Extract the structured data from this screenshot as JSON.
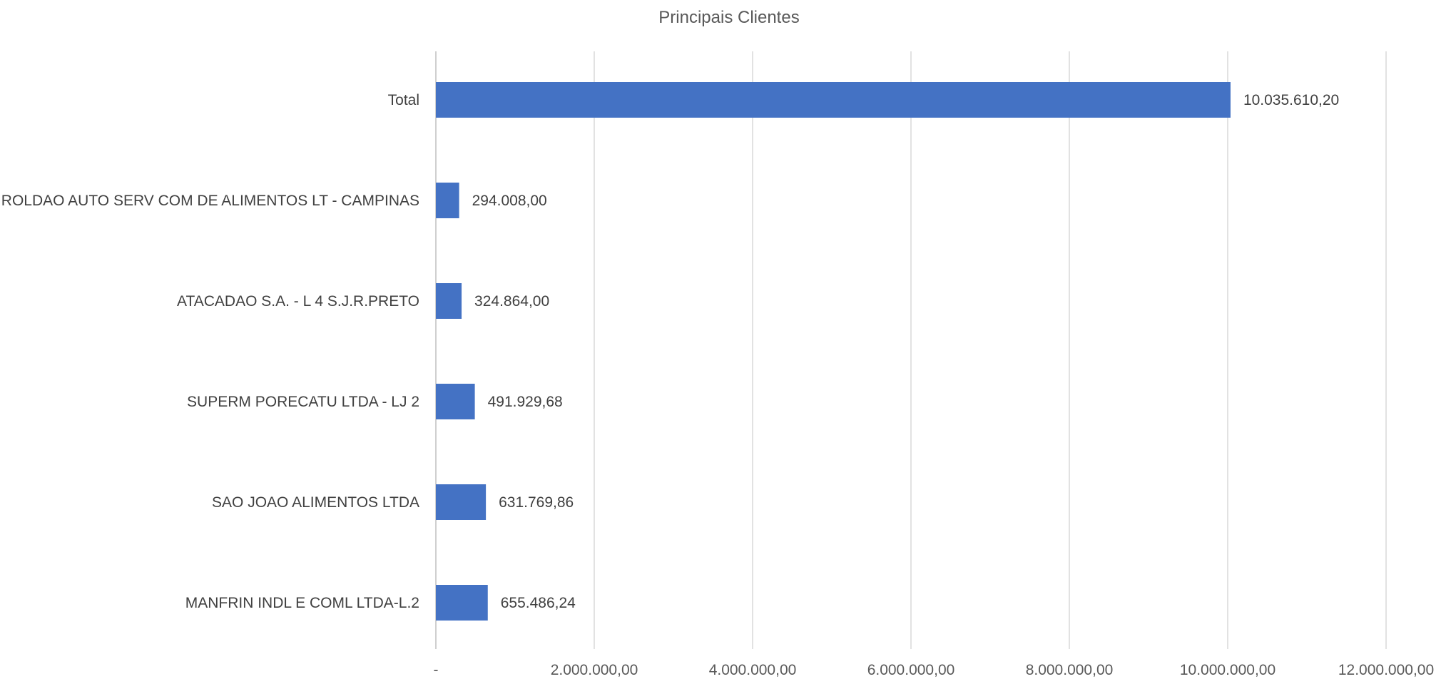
{
  "chart_data": {
    "type": "bar",
    "orientation": "horizontal",
    "title": "Principais Clientes",
    "xlabel": "",
    "ylabel": "",
    "categories": [
      "Total",
      "ROLDAO AUTO SERV COM DE ALIMENTOS LT - CAMPINAS",
      "ATACADAO S.A. - L 4 S.J.R.PRETO",
      "SUPERM PORECATU LTDA - LJ 2",
      "SAO JOAO ALIMENTOS LTDA",
      "MANFRIN INDL E COML LTDA-L.2"
    ],
    "values": [
      10035610.2,
      294008.0,
      324864.0,
      491929.68,
      631769.86,
      655486.24
    ],
    "data_labels": [
      "10.035.610,20",
      "294.008,00",
      "324.864,00",
      "491.929,68",
      "631.769,86",
      "655.486,24"
    ],
    "xlim": [
      0,
      12000000
    ],
    "x_ticks": [
      0,
      2000000,
      4000000,
      6000000,
      8000000,
      10000000,
      12000000
    ],
    "x_tick_labels": [
      "-",
      "2.000.000,00",
      "4.000.000,00",
      "6.000.000,00",
      "8.000.000,00",
      "10.000.000,00",
      "12.000.000,00"
    ],
    "grid": true,
    "legend": "none",
    "bar_color": "#4472C4"
  }
}
